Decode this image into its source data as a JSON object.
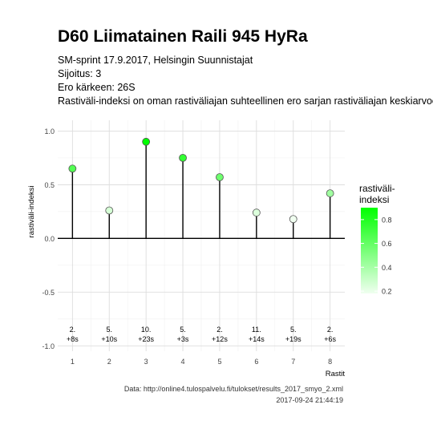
{
  "header": {
    "title": "D60 Liimatainen Raili 945 HyRa",
    "subtitle_lines": [
      "SM-sprint 17.9.2017, Helsingin Suunnistajat",
      "Sijoitus: 3",
      "Ero kärkeen: 26S",
      "Rastiväli-indeksi on oman rastiväliajan suhteellinen ero sarjan rastiväliajan keskiarvoon"
    ]
  },
  "caption": {
    "source": "Data: http://online4.tulospalvelu.fi/tulokset/results_2017_smyo_2.xml",
    "timestamp": "2017-09-24 21:44:19"
  },
  "chart_data": {
    "type": "lollipop",
    "xlabel": "Rastit",
    "ylabel": "rastiväli-indeksi",
    "x": [
      1,
      2,
      3,
      4,
      5,
      6,
      7,
      8
    ],
    "values": [
      0.65,
      0.26,
      0.9,
      0.75,
      0.57,
      0.24,
      0.18,
      0.42
    ],
    "rank_labels": [
      "2.",
      "5.",
      "10.",
      "5.",
      "2.",
      "11.",
      "5.",
      "2."
    ],
    "diff_labels": [
      "+8s",
      "+10s",
      "+23s",
      "+3s",
      "+12s",
      "+14s",
      "+19s",
      "+6s"
    ],
    "xlim": [
      0.6,
      8.4
    ],
    "ylim": [
      -1.05,
      1.1
    ],
    "yticks": [
      -1.0,
      -0.5,
      0.0,
      0.5,
      1.0
    ],
    "ytick_labels": [
      "-1.0",
      "-0.5",
      "0.0",
      "0.5",
      "1.0"
    ],
    "grid": true,
    "legend": {
      "title_lines": [
        "rastiväli-",
        "indeksi"
      ],
      "ticks": [
        0.2,
        0.4,
        0.6,
        0.8
      ],
      "tick_labels": [
        "0.2",
        "0.4",
        "0.6",
        "0.8"
      ],
      "range": [
        0.18,
        0.9
      ],
      "color_low": "#f0fff0",
      "color_high": "#00ff00",
      "position": "right"
    }
  }
}
